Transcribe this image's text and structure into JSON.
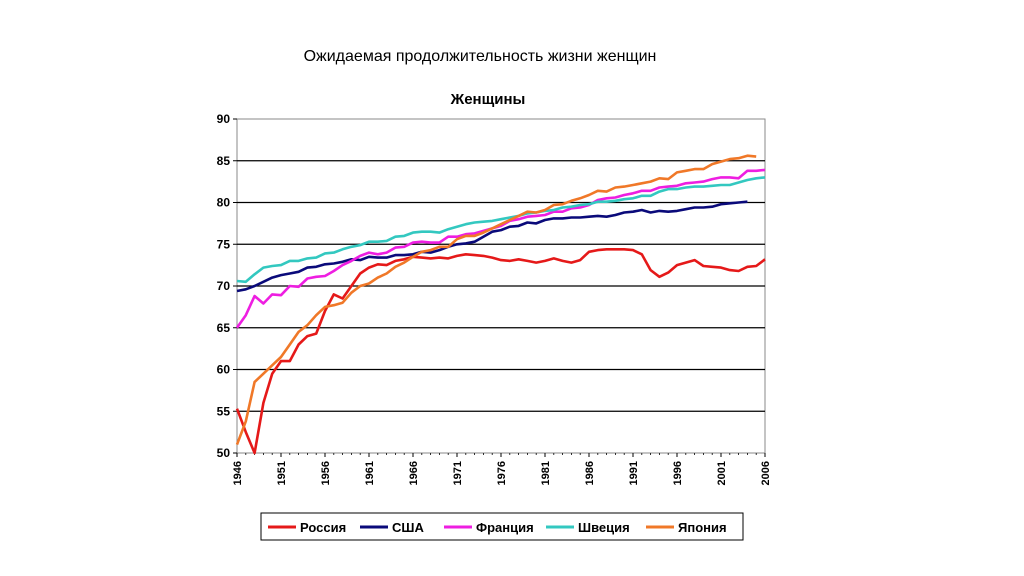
{
  "slide_title": "Ожидаемая продолжительность жизни женщин",
  "chart_data": {
    "type": "line",
    "title": "Женщины",
    "xlabel": "",
    "ylabel": "",
    "xlim": [
      1946,
      2006
    ],
    "ylim": [
      50,
      90
    ],
    "grid": true,
    "legend": "bottom",
    "x_ticks": [
      "1946",
      "1951",
      "1956",
      "1961",
      "1966",
      "1971",
      "1976",
      "1981",
      "1986",
      "1991",
      "1996",
      "2001",
      "2006"
    ],
    "y_ticks": [
      90,
      85,
      80,
      75,
      70,
      65,
      60,
      55,
      50
    ],
    "series": [
      {
        "name": "Россия",
        "color": "#e51919",
        "points": [
          [
            1946,
            55.3
          ],
          [
            1947,
            52.5
          ],
          [
            1948,
            50.0
          ],
          [
            1949,
            56.0
          ],
          [
            1950,
            59.5
          ],
          [
            1951,
            61.0
          ],
          [
            1952,
            61.0
          ],
          [
            1953,
            63.0
          ],
          [
            1954,
            64.0
          ],
          [
            1955,
            64.3
          ],
          [
            1956,
            67.0
          ],
          [
            1957,
            69.0
          ],
          [
            1958,
            68.5
          ],
          [
            1959,
            70.0
          ],
          [
            1960,
            71.5
          ],
          [
            1961,
            72.2
          ],
          [
            1962,
            72.6
          ],
          [
            1963,
            72.5
          ],
          [
            1964,
            73.0
          ],
          [
            1965,
            73.2
          ],
          [
            1966,
            73.5
          ],
          [
            1967,
            73.4
          ],
          [
            1968,
            73.3
          ],
          [
            1969,
            73.4
          ],
          [
            1970,
            73.3
          ],
          [
            1971,
            73.6
          ],
          [
            1972,
            73.8
          ],
          [
            1973,
            73.7
          ],
          [
            1974,
            73.6
          ],
          [
            1975,
            73.4
          ],
          [
            1976,
            73.1
          ],
          [
            1977,
            73.0
          ],
          [
            1978,
            73.2
          ],
          [
            1979,
            73.0
          ],
          [
            1980,
            72.8
          ],
          [
            1981,
            73.0
          ],
          [
            1982,
            73.3
          ],
          [
            1983,
            73.0
          ],
          [
            1984,
            72.8
          ],
          [
            1985,
            73.1
          ],
          [
            1986,
            74.1
          ],
          [
            1987,
            74.3
          ],
          [
            1988,
            74.4
          ],
          [
            1989,
            74.4
          ],
          [
            1990,
            74.4
          ],
          [
            1991,
            74.3
          ],
          [
            1992,
            73.8
          ],
          [
            1993,
            71.9
          ],
          [
            1994,
            71.1
          ],
          [
            1995,
            71.6
          ],
          [
            1996,
            72.5
          ],
          [
            1997,
            72.8
          ],
          [
            1998,
            73.1
          ],
          [
            1999,
            72.4
          ],
          [
            2000,
            72.3
          ],
          [
            2001,
            72.2
          ],
          [
            2002,
            71.9
          ],
          [
            2003,
            71.8
          ],
          [
            2004,
            72.3
          ],
          [
            2005,
            72.4
          ],
          [
            2006,
            73.2
          ]
        ]
      },
      {
        "name": "США",
        "color": "#0a0a7a",
        "points": [
          [
            1946,
            69.4
          ],
          [
            1947,
            69.6
          ],
          [
            1948,
            70.0
          ],
          [
            1949,
            70.5
          ],
          [
            1950,
            71.0
          ],
          [
            1951,
            71.3
          ],
          [
            1952,
            71.5
          ],
          [
            1953,
            71.7
          ],
          [
            1954,
            72.2
          ],
          [
            1955,
            72.3
          ],
          [
            1956,
            72.6
          ],
          [
            1957,
            72.7
          ],
          [
            1958,
            72.9
          ],
          [
            1959,
            73.2
          ],
          [
            1960,
            73.1
          ],
          [
            1961,
            73.5
          ],
          [
            1962,
            73.4
          ],
          [
            1963,
            73.4
          ],
          [
            1964,
            73.7
          ],
          [
            1965,
            73.7
          ],
          [
            1966,
            73.8
          ],
          [
            1967,
            74.1
          ],
          [
            1968,
            74.0
          ],
          [
            1969,
            74.3
          ],
          [
            1970,
            74.7
          ],
          [
            1971,
            75.0
          ],
          [
            1972,
            75.1
          ],
          [
            1973,
            75.3
          ],
          [
            1974,
            75.9
          ],
          [
            1975,
            76.5
          ],
          [
            1976,
            76.7
          ],
          [
            1977,
            77.1
          ],
          [
            1978,
            77.2
          ],
          [
            1979,
            77.6
          ],
          [
            1980,
            77.5
          ],
          [
            1981,
            77.9
          ],
          [
            1982,
            78.1
          ],
          [
            1983,
            78.1
          ],
          [
            1984,
            78.2
          ],
          [
            1985,
            78.2
          ],
          [
            1986,
            78.3
          ],
          [
            1987,
            78.4
          ],
          [
            1988,
            78.3
          ],
          [
            1989,
            78.5
          ],
          [
            1990,
            78.8
          ],
          [
            1991,
            78.9
          ],
          [
            1992,
            79.1
          ],
          [
            1993,
            78.8
          ],
          [
            1994,
            79.0
          ],
          [
            1995,
            78.9
          ],
          [
            1996,
            79.0
          ],
          [
            1997,
            79.2
          ],
          [
            1998,
            79.4
          ],
          [
            1999,
            79.4
          ],
          [
            2000,
            79.5
          ],
          [
            2001,
            79.8
          ],
          [
            2002,
            79.9
          ],
          [
            2003,
            80.0
          ],
          [
            2004,
            80.1
          ]
        ]
      },
      {
        "name": "Франция",
        "color": "#ee1ee1",
        "points": [
          [
            1946,
            65.0
          ],
          [
            1947,
            66.5
          ],
          [
            1948,
            68.8
          ],
          [
            1949,
            67.9
          ],
          [
            1950,
            69.0
          ],
          [
            1951,
            68.9
          ],
          [
            1952,
            70.0
          ],
          [
            1953,
            69.9
          ],
          [
            1954,
            70.9
          ],
          [
            1955,
            71.1
          ],
          [
            1956,
            71.2
          ],
          [
            1957,
            71.8
          ],
          [
            1958,
            72.5
          ],
          [
            1959,
            73.0
          ],
          [
            1960,
            73.6
          ],
          [
            1961,
            74.0
          ],
          [
            1962,
            73.8
          ],
          [
            1963,
            74.0
          ],
          [
            1964,
            74.6
          ],
          [
            1965,
            74.7
          ],
          [
            1966,
            75.2
          ],
          [
            1967,
            75.3
          ],
          [
            1968,
            75.2
          ],
          [
            1969,
            75.2
          ],
          [
            1970,
            75.9
          ],
          [
            1971,
            75.9
          ],
          [
            1972,
            76.2
          ],
          [
            1973,
            76.3
          ],
          [
            1974,
            76.6
          ],
          [
            1975,
            76.9
          ],
          [
            1976,
            77.2
          ],
          [
            1977,
            77.8
          ],
          [
            1978,
            78.0
          ],
          [
            1979,
            78.3
          ],
          [
            1980,
            78.4
          ],
          [
            1981,
            78.5
          ],
          [
            1982,
            78.9
          ],
          [
            1983,
            78.9
          ],
          [
            1984,
            79.3
          ],
          [
            1985,
            79.4
          ],
          [
            1986,
            79.7
          ],
          [
            1987,
            80.3
          ],
          [
            1988,
            80.5
          ],
          [
            1989,
            80.6
          ],
          [
            1990,
            80.9
          ],
          [
            1991,
            81.1
          ],
          [
            1992,
            81.4
          ],
          [
            1993,
            81.4
          ],
          [
            1994,
            81.8
          ],
          [
            1995,
            81.9
          ],
          [
            1996,
            82.0
          ],
          [
            1997,
            82.3
          ],
          [
            1998,
            82.4
          ],
          [
            1999,
            82.5
          ],
          [
            2000,
            82.8
          ],
          [
            2001,
            83.0
          ],
          [
            2002,
            83.0
          ],
          [
            2003,
            82.9
          ],
          [
            2004,
            83.8
          ],
          [
            2005,
            83.8
          ],
          [
            2006,
            83.9
          ]
        ]
      },
      {
        "name": "Швеция",
        "color": "#33c8c0",
        "points": [
          [
            1946,
            70.6
          ],
          [
            1947,
            70.5
          ],
          [
            1948,
            71.4
          ],
          [
            1949,
            72.2
          ],
          [
            1950,
            72.4
          ],
          [
            1951,
            72.5
          ],
          [
            1952,
            73.0
          ],
          [
            1953,
            73.0
          ],
          [
            1954,
            73.3
          ],
          [
            1955,
            73.4
          ],
          [
            1956,
            73.9
          ],
          [
            1957,
            74.0
          ],
          [
            1958,
            74.4
          ],
          [
            1959,
            74.7
          ],
          [
            1960,
            74.9
          ],
          [
            1961,
            75.3
          ],
          [
            1962,
            75.3
          ],
          [
            1963,
            75.4
          ],
          [
            1964,
            75.9
          ],
          [
            1965,
            76.0
          ],
          [
            1966,
            76.4
          ],
          [
            1967,
            76.5
          ],
          [
            1968,
            76.5
          ],
          [
            1969,
            76.4
          ],
          [
            1970,
            76.8
          ],
          [
            1971,
            77.1
          ],
          [
            1972,
            77.4
          ],
          [
            1973,
            77.6
          ],
          [
            1974,
            77.7
          ],
          [
            1975,
            77.8
          ],
          [
            1976,
            78.0
          ],
          [
            1977,
            78.2
          ],
          [
            1978,
            78.4
          ],
          [
            1979,
            78.7
          ],
          [
            1980,
            78.8
          ],
          [
            1981,
            79.0
          ],
          [
            1982,
            79.1
          ],
          [
            1983,
            79.4
          ],
          [
            1984,
            79.5
          ],
          [
            1985,
            79.7
          ],
          [
            1986,
            79.8
          ],
          [
            1987,
            80.1
          ],
          [
            1988,
            80.1
          ],
          [
            1989,
            80.2
          ],
          [
            1990,
            80.4
          ],
          [
            1991,
            80.5
          ],
          [
            1992,
            80.8
          ],
          [
            1993,
            80.8
          ],
          [
            1994,
            81.3
          ],
          [
            1995,
            81.6
          ],
          [
            1996,
            81.6
          ],
          [
            1997,
            81.8
          ],
          [
            1998,
            81.9
          ],
          [
            1999,
            81.9
          ],
          [
            2000,
            82.0
          ],
          [
            2001,
            82.1
          ],
          [
            2002,
            82.1
          ],
          [
            2003,
            82.4
          ],
          [
            2004,
            82.7
          ],
          [
            2005,
            82.9
          ],
          [
            2006,
            83.0
          ]
        ]
      },
      {
        "name": "Япония",
        "color": "#f07828",
        "points": [
          [
            1946,
            51.0
          ],
          [
            1947,
            53.8
          ],
          [
            1948,
            58.5
          ],
          [
            1949,
            59.5
          ],
          [
            1950,
            60.5
          ],
          [
            1951,
            61.5
          ],
          [
            1952,
            63.0
          ],
          [
            1953,
            64.5
          ],
          [
            1954,
            65.3
          ],
          [
            1955,
            66.5
          ],
          [
            1956,
            67.5
          ],
          [
            1957,
            67.7
          ],
          [
            1958,
            68.0
          ],
          [
            1959,
            69.2
          ],
          [
            1960,
            70.0
          ],
          [
            1961,
            70.3
          ],
          [
            1962,
            71.0
          ],
          [
            1963,
            71.5
          ],
          [
            1964,
            72.3
          ],
          [
            1965,
            72.8
          ],
          [
            1966,
            73.5
          ],
          [
            1967,
            74.1
          ],
          [
            1968,
            74.3
          ],
          [
            1969,
            74.7
          ],
          [
            1970,
            74.7
          ],
          [
            1971,
            75.6
          ],
          [
            1972,
            76.0
          ],
          [
            1973,
            76.0
          ],
          [
            1974,
            76.4
          ],
          [
            1975,
            76.9
          ],
          [
            1976,
            77.4
          ],
          [
            1977,
            77.9
          ],
          [
            1978,
            78.4
          ],
          [
            1979,
            78.9
          ],
          [
            1980,
            78.8
          ],
          [
            1981,
            79.1
          ],
          [
            1982,
            79.7
          ],
          [
            1983,
            79.8
          ],
          [
            1984,
            80.2
          ],
          [
            1985,
            80.5
          ],
          [
            1986,
            80.9
          ],
          [
            1987,
            81.4
          ],
          [
            1988,
            81.3
          ],
          [
            1989,
            81.8
          ],
          [
            1990,
            81.9
          ],
          [
            1991,
            82.1
          ],
          [
            1992,
            82.3
          ],
          [
            1993,
            82.5
          ],
          [
            1994,
            82.9
          ],
          [
            1995,
            82.8
          ],
          [
            1996,
            83.6
          ],
          [
            1997,
            83.8
          ],
          [
            1998,
            84.0
          ],
          [
            1999,
            84.0
          ],
          [
            2000,
            84.6
          ],
          [
            2001,
            84.9
          ],
          [
            2002,
            85.2
          ],
          [
            2003,
            85.3
          ],
          [
            2004,
            85.6
          ],
          [
            2005,
            85.5
          ]
        ]
      }
    ]
  }
}
